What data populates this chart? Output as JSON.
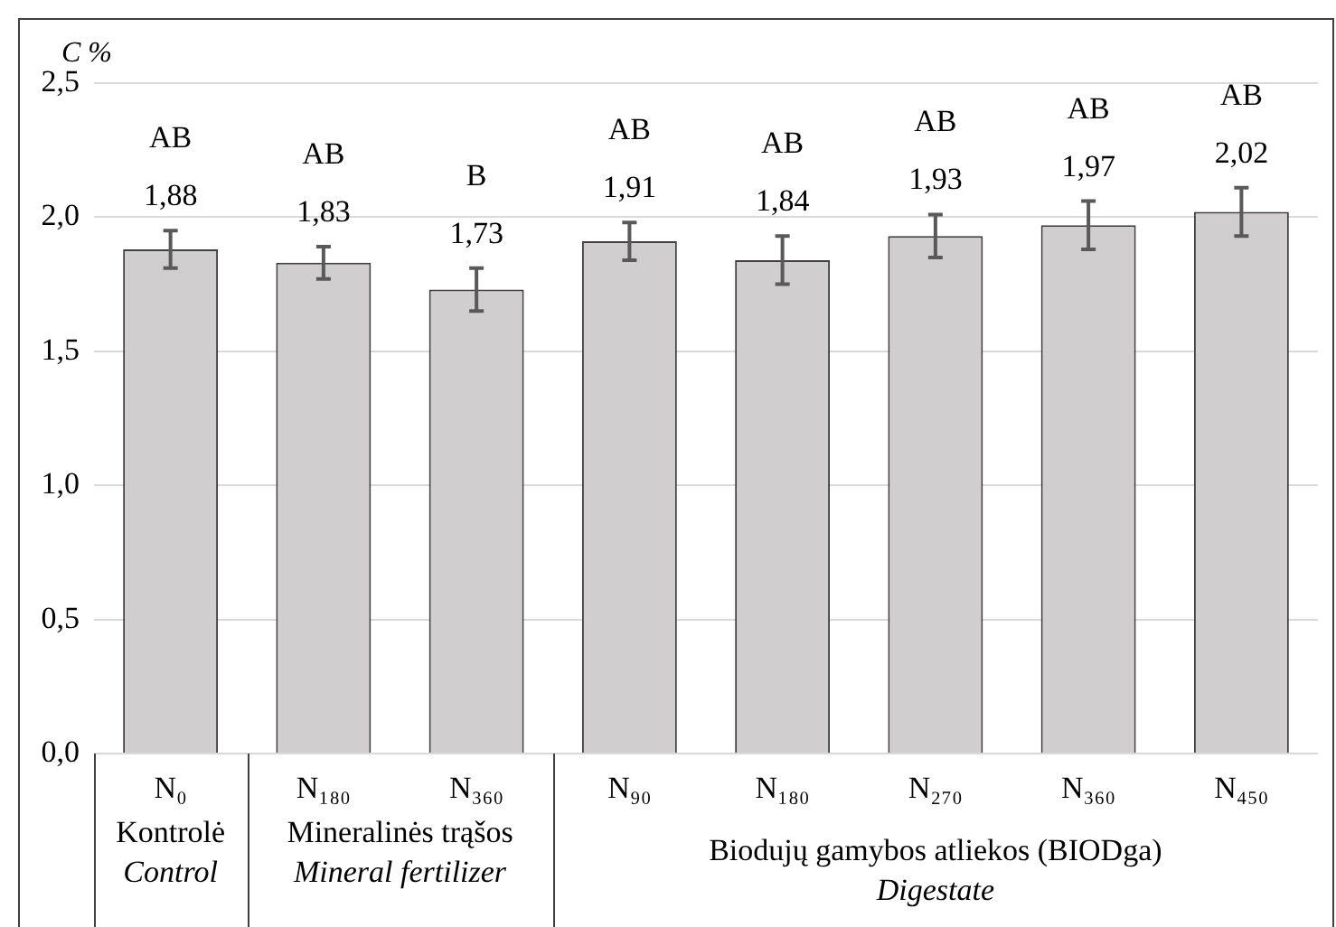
{
  "chart_data": {
    "type": "bar",
    "ylabel": "C %",
    "categories": [
      "N₀",
      "N₁₈₀",
      "N₃₆₀",
      "N₉₀",
      "N₁₈₀",
      "N₂₇₀",
      "N₃₆₀",
      "N₄₅₀"
    ],
    "values": [
      1.88,
      1.83,
      1.73,
      1.91,
      1.84,
      1.93,
      1.97,
      2.02
    ],
    "value_labels": [
      "1,88",
      "1,83",
      "1,73",
      "1,91",
      "1,84",
      "1,93",
      "1,97",
      "2,02"
    ],
    "errors": [
      0.07,
      0.06,
      0.08,
      0.07,
      0.09,
      0.08,
      0.09,
      0.09
    ],
    "color": "#d0cecf",
    "ylim": [
      0,
      2.5
    ],
    "yticks": [
      {
        "value": 0,
        "label": "0,0"
      },
      {
        "value": 0.5,
        "label": "0,5"
      },
      {
        "value": 1,
        "label": "1,0"
      },
      {
        "value": 1.5,
        "label": "1,5"
      },
      {
        "value": 2,
        "label": "2,0"
      },
      {
        "value": 2.5,
        "label": "2,5"
      }
    ],
    "grid": "y",
    "legend": false,
    "annotations": [
      "AB",
      "AB",
      "B",
      "AB",
      "AB",
      "AB",
      "AB",
      "AB",
      "Kontrolė",
      "Control",
      "Mineralinės trąšos",
      "Mineral fertilizer",
      "Biodujų gamybos atliekos (BIODga)",
      "Digestate"
    ]
  }
}
